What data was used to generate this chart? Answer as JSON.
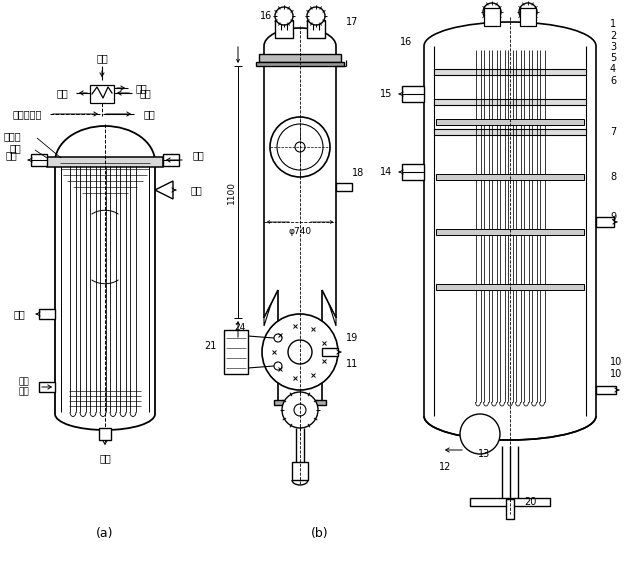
{
  "bg": "#ffffff",
  "fw": 6.4,
  "fh": 5.62,
  "texts": {
    "steam": "蒸汽",
    "air": "空气",
    "wout": "出水",
    "win": "进水",
    "upper_drain_from": "上级疏水来",
    "drain": "疏水",
    "tube_plate": "管板",
    "deflector": "导流板",
    "upper_drain": "上级\n疏水",
    "la": "(a)",
    "lb": "(b)",
    "d1100": "1100",
    "d24": "24",
    "phi": "φ740"
  }
}
